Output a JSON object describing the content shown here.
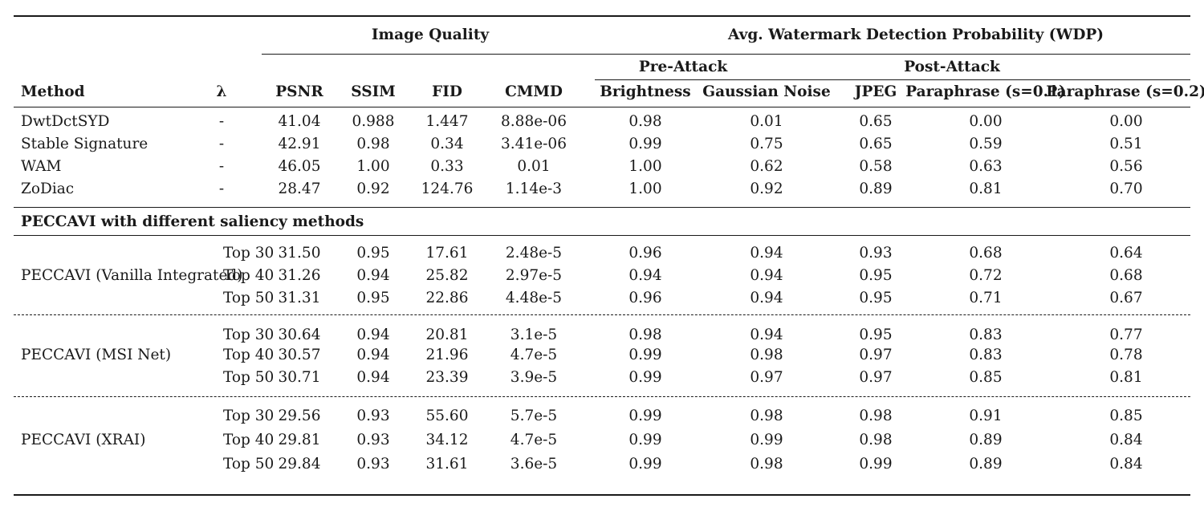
{
  "header": {
    "image_quality": "Image Quality",
    "wdp": "Avg. Watermark Detection Probability (WDP)",
    "pre_attack": "Pre-Attack",
    "post_attack": "Post-Attack",
    "columns": [
      "Method",
      "λ",
      "PSNR",
      "SSIM",
      "FID",
      "CMMD",
      "Brightness",
      "Gaussian Noise",
      "JPEG",
      "Paraphrase (s=0.1)",
      "Paraphrase (s=0.2)"
    ]
  },
  "baselines": [
    {
      "method": "DwtDctSYD",
      "lambda": "-",
      "values": [
        "41.04",
        "0.988",
        "1.447",
        "8.88e-06",
        "0.98",
        "0.01",
        "0.65",
        "0.00",
        "0.00"
      ]
    },
    {
      "method": "Stable Signature",
      "lambda": "-",
      "values": [
        "42.91",
        "0.98",
        "0.34",
        "3.41e-06",
        "0.99",
        "0.75",
        "0.65",
        "0.59",
        "0.51"
      ]
    },
    {
      "method": "WAM",
      "lambda": "-",
      "values": [
        "46.05",
        "1.00",
        "0.33",
        "0.01",
        "1.00",
        "0.62",
        "0.58",
        "0.63",
        "0.56"
      ]
    },
    {
      "method": "ZoDiac",
      "lambda": "-",
      "values": [
        "28.47",
        "0.92",
        "124.76",
        "1.14e-3",
        "1.00",
        "0.92",
        "0.89",
        "0.81",
        "0.70"
      ]
    }
  ],
  "section_title": "PECCAVI with different saliency methods",
  "groups": [
    {
      "method": "PECCAVI (Vanilla Integrated)",
      "rows": [
        {
          "lambda": "Top 30",
          "values": [
            "31.50",
            "0.95",
            "17.61",
            "2.48e-5",
            "0.96",
            "0.94",
            "0.93",
            "0.68",
            "0.64"
          ]
        },
        {
          "lambda": "Top 40",
          "values": [
            "31.26",
            "0.94",
            "25.82",
            "2.97e-5",
            "0.94",
            "0.94",
            "0.95",
            "0.72",
            "0.68"
          ]
        },
        {
          "lambda": "Top 50",
          "values": [
            "31.31",
            "0.95",
            "22.86",
            "4.48e-5",
            "0.96",
            "0.94",
            "0.95",
            "0.71",
            "0.67"
          ]
        }
      ]
    },
    {
      "method": "PECCAVI (MSI Net)",
      "rows": [
        {
          "lambda": "Top 30",
          "values": [
            "30.64",
            "0.94",
            "20.81",
            "3.1e-5",
            "0.98",
            "0.94",
            "0.95",
            "0.83",
            "0.77"
          ]
        },
        {
          "lambda": "Top 40",
          "values": [
            "30.57",
            "0.94",
            "21.96",
            "4.7e-5",
            "0.99",
            "0.98",
            "0.97",
            "0.83",
            "0.78"
          ]
        },
        {
          "lambda": "Top 50",
          "values": [
            "30.71",
            "0.94",
            "23.39",
            "3.9e-5",
            "0.99",
            "0.97",
            "0.97",
            "0.85",
            "0.81"
          ]
        }
      ]
    },
    {
      "method": "PECCAVI (XRAI)",
      "rows": [
        {
          "lambda": "Top 30",
          "values": [
            "29.56",
            "0.93",
            "55.60",
            "5.7e-5",
            "0.99",
            "0.98",
            "0.98",
            "0.91",
            "0.85"
          ]
        },
        {
          "lambda": "Top 40",
          "values": [
            "29.81",
            "0.93",
            "34.12",
            "4.7e-5",
            "0.99",
            "0.99",
            "0.98",
            "0.89",
            "0.84"
          ]
        },
        {
          "lambda": "Top 50",
          "values": [
            "29.84",
            "0.93",
            "31.61",
            "3.6e-5",
            "0.99",
            "0.98",
            "0.99",
            "0.89",
            "0.84"
          ]
        }
      ]
    }
  ]
}
